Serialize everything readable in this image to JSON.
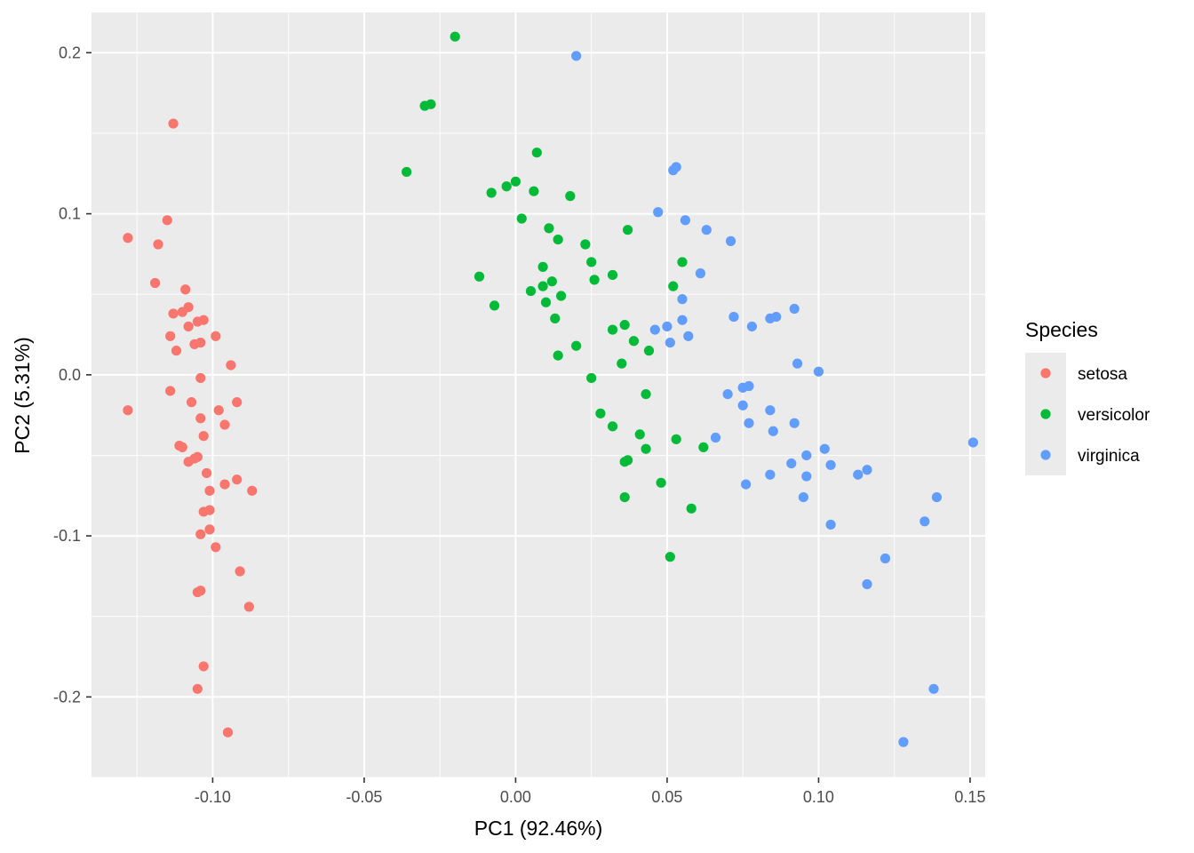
{
  "chart_data": {
    "type": "scatter",
    "xlabel": "PC1 (92.46%)",
    "ylabel": "PC2 (5.31%)",
    "xlim": [
      -0.14,
      0.155
    ],
    "ylim": [
      -0.25,
      0.225
    ],
    "x_ticks": [
      -0.1,
      -0.05,
      0.0,
      0.05,
      0.1,
      0.15
    ],
    "x_tick_labels": [
      "-0.10",
      "-0.05",
      "0.00",
      "0.05",
      "0.10",
      "0.15"
    ],
    "y_ticks": [
      -0.2,
      -0.1,
      0.0,
      0.1,
      0.2
    ],
    "y_tick_labels": [
      "-0.2",
      "-0.1",
      "0.0",
      "0.1",
      "0.2"
    ],
    "grid": true,
    "legend": {
      "title": "Species",
      "placement": "right"
    },
    "series": [
      {
        "name": "setosa",
        "color": "#F8766D",
        "points": [
          [
            -0.113,
            0.156
          ],
          [
            -0.115,
            0.096
          ],
          [
            -0.128,
            0.085
          ],
          [
            -0.118,
            0.081
          ],
          [
            -0.119,
            0.057
          ],
          [
            -0.109,
            0.053
          ],
          [
            -0.108,
            0.042
          ],
          [
            -0.11,
            0.039
          ],
          [
            -0.113,
            0.038
          ],
          [
            -0.103,
            0.034
          ],
          [
            -0.105,
            0.033
          ],
          [
            -0.108,
            0.03
          ],
          [
            -0.114,
            0.024
          ],
          [
            -0.099,
            0.024
          ],
          [
            -0.104,
            0.02
          ],
          [
            -0.106,
            0.019
          ],
          [
            -0.112,
            0.015
          ],
          [
            -0.094,
            0.006
          ],
          [
            -0.104,
            -0.002
          ],
          [
            -0.114,
            -0.01
          ],
          [
            -0.107,
            -0.017
          ],
          [
            -0.092,
            -0.017
          ],
          [
            -0.128,
            -0.022
          ],
          [
            -0.098,
            -0.022
          ],
          [
            -0.104,
            -0.027
          ],
          [
            -0.096,
            -0.031
          ],
          [
            -0.103,
            -0.038
          ],
          [
            -0.111,
            -0.044
          ],
          [
            -0.11,
            -0.045
          ],
          [
            -0.105,
            -0.051
          ],
          [
            -0.106,
            -0.052
          ],
          [
            -0.108,
            -0.054
          ],
          [
            -0.102,
            -0.061
          ],
          [
            -0.092,
            -0.065
          ],
          [
            -0.096,
            -0.068
          ],
          [
            -0.101,
            -0.072
          ],
          [
            -0.087,
            -0.072
          ],
          [
            -0.101,
            -0.084
          ],
          [
            -0.103,
            -0.085
          ],
          [
            -0.101,
            -0.096
          ],
          [
            -0.104,
            -0.099
          ],
          [
            -0.099,
            -0.107
          ],
          [
            -0.091,
            -0.122
          ],
          [
            -0.104,
            -0.134
          ],
          [
            -0.105,
            -0.135
          ],
          [
            -0.088,
            -0.144
          ],
          [
            -0.103,
            -0.181
          ],
          [
            -0.105,
            -0.195
          ],
          [
            -0.095,
            -0.222
          ]
        ]
      },
      {
        "name": "versicolor",
        "color": "#00BA38",
        "points": [
          [
            -0.02,
            0.21
          ],
          [
            -0.028,
            0.168
          ],
          [
            -0.03,
            0.167
          ],
          [
            0.007,
            0.138
          ],
          [
            -0.036,
            0.126
          ],
          [
            0.0,
            0.12
          ],
          [
            -0.003,
            0.117
          ],
          [
            -0.008,
            0.113
          ],
          [
            0.006,
            0.114
          ],
          [
            0.018,
            0.111
          ],
          [
            0.002,
            0.097
          ],
          [
            0.011,
            0.091
          ],
          [
            0.037,
            0.09
          ],
          [
            0.014,
            0.084
          ],
          [
            0.023,
            0.081
          ],
          [
            0.025,
            0.07
          ],
          [
            0.055,
            0.07
          ],
          [
            0.009,
            0.067
          ],
          [
            -0.012,
            0.061
          ],
          [
            0.032,
            0.062
          ],
          [
            0.026,
            0.059
          ],
          [
            0.012,
            0.058
          ],
          [
            0.009,
            0.055
          ],
          [
            0.052,
            0.055
          ],
          [
            0.005,
            0.052
          ],
          [
            0.015,
            0.049
          ],
          [
            0.01,
            0.045
          ],
          [
            -0.007,
            0.043
          ],
          [
            0.013,
            0.035
          ],
          [
            0.036,
            0.031
          ],
          [
            0.032,
            0.028
          ],
          [
            0.039,
            0.021
          ],
          [
            0.02,
            0.018
          ],
          [
            0.044,
            0.015
          ],
          [
            0.014,
            0.012
          ],
          [
            0.035,
            0.007
          ],
          [
            0.025,
            -0.002
          ],
          [
            0.043,
            -0.012
          ],
          [
            0.028,
            -0.024
          ],
          [
            0.032,
            -0.032
          ],
          [
            0.041,
            -0.037
          ],
          [
            0.053,
            -0.04
          ],
          [
            0.043,
            -0.046
          ],
          [
            0.062,
            -0.045
          ],
          [
            0.037,
            -0.053
          ],
          [
            0.036,
            -0.054
          ],
          [
            0.048,
            -0.067
          ],
          [
            0.036,
            -0.076
          ],
          [
            0.058,
            -0.083
          ],
          [
            0.051,
            -0.113
          ]
        ]
      },
      {
        "name": "virginica",
        "color": "#619CFF",
        "points": [
          [
            0.02,
            0.198
          ],
          [
            0.053,
            0.129
          ],
          [
            0.052,
            0.127
          ],
          [
            0.047,
            0.101
          ],
          [
            0.056,
            0.096
          ],
          [
            0.063,
            0.09
          ],
          [
            0.071,
            0.083
          ],
          [
            0.061,
            0.063
          ],
          [
            0.055,
            0.047
          ],
          [
            0.092,
            0.041
          ],
          [
            0.086,
            0.036
          ],
          [
            0.084,
            0.035
          ],
          [
            0.072,
            0.036
          ],
          [
            0.055,
            0.034
          ],
          [
            0.05,
            0.03
          ],
          [
            0.078,
            0.03
          ],
          [
            0.046,
            0.028
          ],
          [
            0.057,
            0.024
          ],
          [
            0.051,
            0.02
          ],
          [
            0.093,
            0.007
          ],
          [
            0.1,
            0.002
          ],
          [
            0.077,
            -0.007
          ],
          [
            0.075,
            -0.008
          ],
          [
            0.07,
            -0.012
          ],
          [
            0.075,
            -0.019
          ],
          [
            0.084,
            -0.022
          ],
          [
            0.077,
            -0.03
          ],
          [
            0.092,
            -0.03
          ],
          [
            0.085,
            -0.035
          ],
          [
            0.066,
            -0.039
          ],
          [
            0.151,
            -0.042
          ],
          [
            0.102,
            -0.046
          ],
          [
            0.096,
            -0.05
          ],
          [
            0.091,
            -0.055
          ],
          [
            0.104,
            -0.056
          ],
          [
            0.116,
            -0.059
          ],
          [
            0.113,
            -0.062
          ],
          [
            0.084,
            -0.062
          ],
          [
            0.096,
            -0.063
          ],
          [
            0.076,
            -0.068
          ],
          [
            0.095,
            -0.076
          ],
          [
            0.139,
            -0.076
          ],
          [
            0.135,
            -0.091
          ],
          [
            0.104,
            -0.093
          ],
          [
            0.122,
            -0.114
          ],
          [
            0.116,
            -0.13
          ],
          [
            0.138,
            -0.195
          ],
          [
            0.128,
            -0.228
          ]
        ]
      }
    ]
  }
}
